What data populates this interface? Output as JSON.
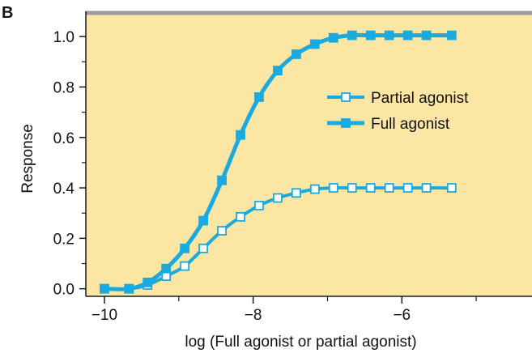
{
  "panel_label": "B",
  "colors": {
    "plot_background": "#fbe6a4",
    "top_border": "#9a9a9a",
    "axis": "#1a1a1a",
    "series": "#1aaae0",
    "open_marker_fill": "#ffffff"
  },
  "chart_data": {
    "type": "line",
    "title": "",
    "xlabel": "log (Full agonist or partial agonist)",
    "ylabel": "Response",
    "xlim": [
      -10.25,
      -4.25
    ],
    "ylim": [
      -0.03,
      1.1
    ],
    "x_ticks": [
      -10,
      -8,
      -6
    ],
    "x_tick_labels": [
      "−10",
      "−8",
      "−6"
    ],
    "x_minor_ticks": [
      -9,
      -7,
      -5
    ],
    "y_ticks": [
      0.0,
      0.2,
      0.4,
      0.6,
      0.8,
      1.0
    ],
    "y_tick_labels": [
      "0.0",
      "0.2",
      "0.4",
      "0.6",
      "0.8",
      "1.0"
    ],
    "y_minor_ticks": [
      0.1,
      0.3,
      0.5,
      0.7,
      0.9
    ],
    "grid": false,
    "legend_position": "right-center",
    "series": [
      {
        "name": "Partial agonist",
        "marker": "open-square",
        "x": [
          -10.0,
          -9.67,
          -9.42,
          -9.17,
          -8.92,
          -8.67,
          -8.42,
          -8.17,
          -7.92,
          -7.67,
          -7.42,
          -7.17,
          -6.92,
          -6.67,
          -6.42,
          -6.17,
          -5.92,
          -5.67,
          -5.33
        ],
        "y": [
          0.0,
          0.0,
          0.015,
          0.05,
          0.09,
          0.16,
          0.23,
          0.285,
          0.33,
          0.36,
          0.38,
          0.395,
          0.4,
          0.4,
          0.4,
          0.4,
          0.4,
          0.4,
          0.4
        ]
      },
      {
        "name": "Full agonist",
        "marker": "filled-square",
        "x": [
          -10.0,
          -9.67,
          -9.42,
          -9.17,
          -8.92,
          -8.67,
          -8.42,
          -8.17,
          -7.92,
          -7.67,
          -7.42,
          -7.17,
          -6.92,
          -6.67,
          -6.42,
          -6.17,
          -5.92,
          -5.67,
          -5.33
        ],
        "y": [
          0.0,
          0.0,
          0.025,
          0.08,
          0.16,
          0.27,
          0.43,
          0.61,
          0.76,
          0.865,
          0.93,
          0.97,
          0.995,
          1.005,
          1.005,
          1.005,
          1.005,
          1.005,
          1.005
        ]
      }
    ]
  }
}
